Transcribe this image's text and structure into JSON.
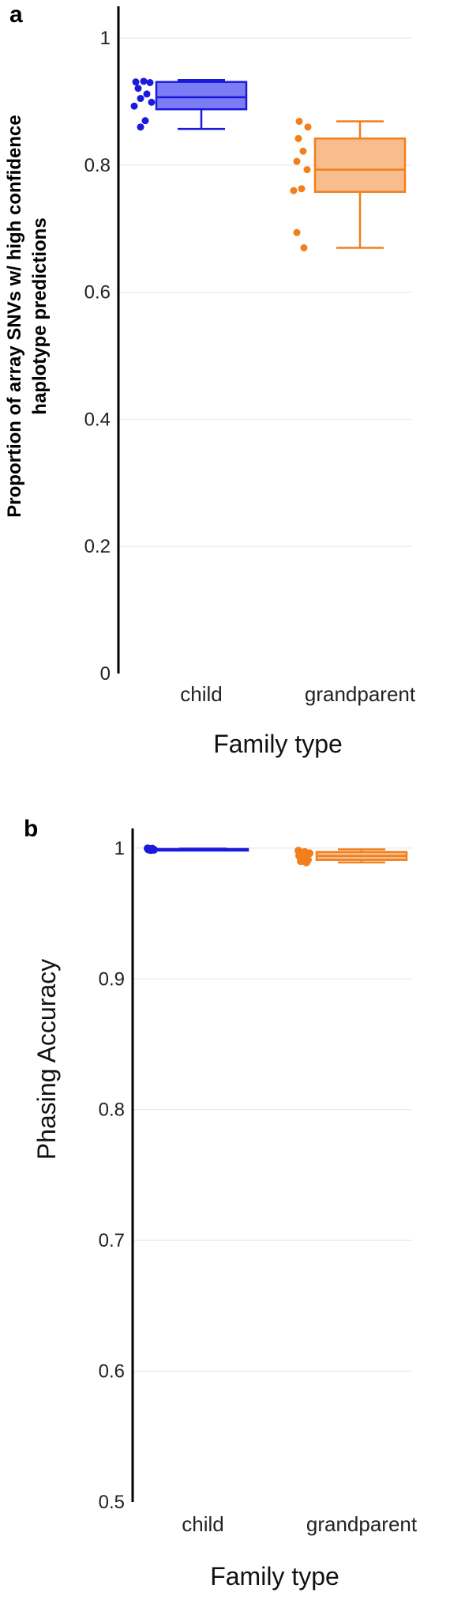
{
  "chart_data": [
    {
      "type": "box",
      "panel": "a",
      "xlabel": "Family type",
      "ylabel": [
        "Proportion of array SNVs w/ high confidence",
        "haplotype predictions"
      ],
      "ylim": [
        0,
        1.05
      ],
      "yticks": [
        "0",
        "0.2",
        "0.4",
        "0.6",
        "0.8",
        "1"
      ],
      "grid": true,
      "categories": [
        "child",
        "grandparent"
      ],
      "series": [
        {
          "category": "child",
          "color": "#1a1adc",
          "fill": "#7c7cf4",
          "box": {
            "whisker_low": 0.857,
            "q1": 0.888,
            "median": 0.907,
            "q3": 0.931,
            "whisker_high": 0.934
          },
          "points": [
            0.932,
            0.931,
            0.93,
            0.921,
            0.912,
            0.905,
            0.899,
            0.893,
            0.87,
            0.86
          ]
        },
        {
          "category": "grandparent",
          "color": "#f07f1c",
          "fill": "#f9bc8c",
          "box": {
            "whisker_low": 0.67,
            "q1": 0.758,
            "median": 0.793,
            "q3": 0.842,
            "whisker_high": 0.869
          },
          "points": [
            0.869,
            0.86,
            0.842,
            0.822,
            0.806,
            0.793,
            0.763,
            0.76,
            0.694,
            0.67
          ]
        }
      ]
    },
    {
      "type": "box",
      "panel": "b",
      "xlabel": "Family type",
      "ylabel": "Phasing Accuracy",
      "ylim": [
        0.5,
        1.015
      ],
      "yticks": [
        "0.5",
        "0.6",
        "0.7",
        "0.8",
        "0.9",
        "1"
      ],
      "grid": true,
      "categories": [
        "child",
        "grandparent"
      ],
      "series": [
        {
          "category": "child",
          "color": "#1a1adc",
          "fill": "#7c7cf4",
          "box": {
            "whisker_low": 0.9985,
            "q1": 0.9988,
            "median": 0.999,
            "q3": 0.9993,
            "whisker_high": 0.9996
          },
          "points": [
            0.9997,
            0.9995,
            0.9993,
            0.9991,
            0.9989,
            0.9987,
            0.9985
          ]
        },
        {
          "category": "grandparent",
          "color": "#f07f1c",
          "fill": "#f9bc8c",
          "box": {
            "whisker_low": 0.989,
            "q1": 0.991,
            "median": 0.994,
            "q3": 0.997,
            "whisker_high": 0.999
          },
          "points": [
            0.998,
            0.997,
            0.996,
            0.994,
            0.993,
            0.991,
            0.99,
            0.989
          ]
        }
      ]
    }
  ]
}
